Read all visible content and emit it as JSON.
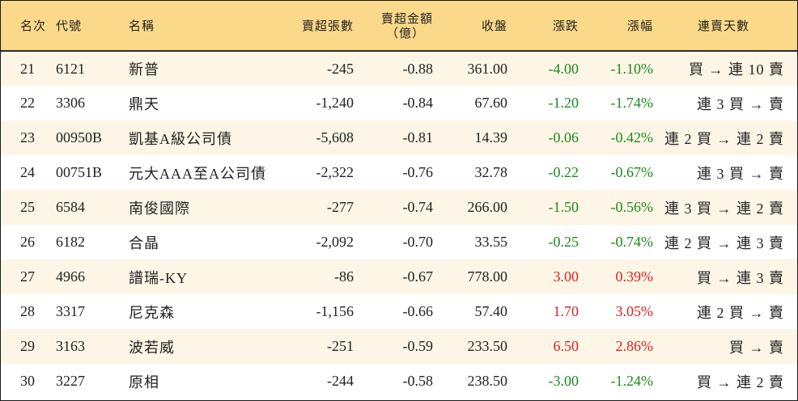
{
  "headers": {
    "rank": "名次",
    "code": "代號",
    "name": "名稱",
    "sell_lots": "賣超張數",
    "sell_amount_line1": "賣超金額",
    "sell_amount_line2": "（億）",
    "close": "收盤",
    "change": "漲跌",
    "change_pct": "漲幅",
    "streak": "連賣天數"
  },
  "colors": {
    "header_bg": "#fbd98a",
    "row_alt_bg": "#fdf6e6",
    "up": "#e02020",
    "down": "#1d8a1d"
  },
  "rows": [
    {
      "rank": "21",
      "code": "6121",
      "name": "新普",
      "sell_lots": "-245",
      "sell_amount": "-0.88",
      "close": "361.00",
      "change": "-4.00",
      "change_pct": "-1.10%",
      "dir": "down",
      "streak": "買 → 連 10 賣"
    },
    {
      "rank": "22",
      "code": "3306",
      "name": "鼎天",
      "sell_lots": "-1,240",
      "sell_amount": "-0.84",
      "close": "67.60",
      "change": "-1.20",
      "change_pct": "-1.74%",
      "dir": "down",
      "streak": "連 3 買 → 賣"
    },
    {
      "rank": "23",
      "code": "00950B",
      "name": "凱基A級公司債",
      "sell_lots": "-5,608",
      "sell_amount": "-0.81",
      "close": "14.39",
      "change": "-0.06",
      "change_pct": "-0.42%",
      "dir": "down",
      "streak": "連 2 買 → 連 2 賣"
    },
    {
      "rank": "24",
      "code": "00751B",
      "name": "元大AAA至A公司債",
      "sell_lots": "-2,322",
      "sell_amount": "-0.76",
      "close": "32.78",
      "change": "-0.22",
      "change_pct": "-0.67%",
      "dir": "down",
      "streak": "連 3 買 → 賣"
    },
    {
      "rank": "25",
      "code": "6584",
      "name": "南俊國際",
      "sell_lots": "-277",
      "sell_amount": "-0.74",
      "close": "266.00",
      "change": "-1.50",
      "change_pct": "-0.56%",
      "dir": "down",
      "streak": "連 3 買 → 連 2 賣"
    },
    {
      "rank": "26",
      "code": "6182",
      "name": "合晶",
      "sell_lots": "-2,092",
      "sell_amount": "-0.70",
      "close": "33.55",
      "change": "-0.25",
      "change_pct": "-0.74%",
      "dir": "down",
      "streak": "連 2 買 → 連 3 賣"
    },
    {
      "rank": "27",
      "code": "4966",
      "name": "譜瑞-KY",
      "sell_lots": "-86",
      "sell_amount": "-0.67",
      "close": "778.00",
      "change": "3.00",
      "change_pct": "0.39%",
      "dir": "up",
      "streak": "買 → 連 3 賣"
    },
    {
      "rank": "28",
      "code": "3317",
      "name": "尼克森",
      "sell_lots": "-1,156",
      "sell_amount": "-0.66",
      "close": "57.40",
      "change": "1.70",
      "change_pct": "3.05%",
      "dir": "up",
      "streak": "連 2 買 → 賣"
    },
    {
      "rank": "29",
      "code": "3163",
      "name": "波若威",
      "sell_lots": "-251",
      "sell_amount": "-0.59",
      "close": "233.50",
      "change": "6.50",
      "change_pct": "2.86%",
      "dir": "up",
      "streak": "買 → 賣"
    },
    {
      "rank": "30",
      "code": "3227",
      "name": "原相",
      "sell_lots": "-244",
      "sell_amount": "-0.58",
      "close": "238.50",
      "change": "-3.00",
      "change_pct": "-1.24%",
      "dir": "down",
      "streak": "買 → 連 2 賣"
    }
  ]
}
